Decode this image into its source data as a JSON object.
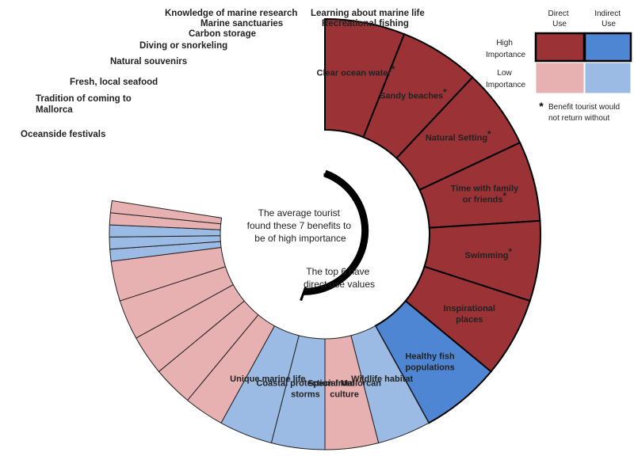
{
  "colors": {
    "direct_high": "#9b3235",
    "direct_low": "#e7b0b1",
    "indirect_high": "#4f86d3",
    "indirect_low": "#9bbbe4"
  },
  "segments": [
    {
      "label": "Clear ocean water",
      "lines": [
        "Clear ocean water"
      ],
      "category": "direct_high",
      "star": true,
      "size": "large"
    },
    {
      "label": "Sandy beaches",
      "lines": [
        "Sandy beaches"
      ],
      "category": "direct_high",
      "star": true,
      "size": "large"
    },
    {
      "label": "Natural Setting",
      "lines": [
        "Natural Setting"
      ],
      "category": "direct_high",
      "star": true,
      "size": "large"
    },
    {
      "label": "Time with family or friends",
      "lines": [
        "Time with family",
        "or friends"
      ],
      "category": "direct_high",
      "star": true,
      "size": "large"
    },
    {
      "label": "Swimming",
      "lines": [
        "Swimming"
      ],
      "category": "direct_high",
      "star": true,
      "size": "large"
    },
    {
      "label": "Inspirational places",
      "lines": [
        "Inspirational",
        "places"
      ],
      "category": "direct_high",
      "star": false,
      "size": "large"
    },
    {
      "label": "Healthy fish populations",
      "lines": [
        "Healthy fish",
        "populations"
      ],
      "category": "indirect_high",
      "star": false,
      "size": "large"
    },
    {
      "label": "Wildlife habitat",
      "lines": [
        "Wildlife habitat"
      ],
      "category": "indirect_low",
      "star": false,
      "size": "medium"
    },
    {
      "label": "Special Mallorcan culture",
      "lines": [
        "Special Mallorcan",
        "culture"
      ],
      "category": "direct_low",
      "star": false,
      "size": "medium"
    },
    {
      "label": "Coastal protection from storms",
      "lines": [
        "Coastal protection from",
        "storms"
      ],
      "category": "indirect_low",
      "star": false,
      "size": "medium"
    },
    {
      "label": "Unique marine life",
      "lines": [
        "Unique marine life"
      ],
      "category": "indirect_low",
      "star": false,
      "size": "medium"
    },
    {
      "label": "Oceanside festivals",
      "lines": [
        "Oceanside festivals"
      ],
      "category": "direct_low",
      "star": false,
      "size": "small"
    },
    {
      "label": "Tradition of coming to Mallorca",
      "lines": [
        "Tradition of coming to",
        "Mallorca"
      ],
      "category": "direct_low",
      "star": false,
      "size": "small"
    },
    {
      "label": "Fresh, local seafood",
      "lines": [
        "Fresh, local seafood"
      ],
      "category": "direct_low",
      "star": false,
      "size": "small"
    },
    {
      "label": "Natural souvenirs",
      "lines": [
        "Natural souvenirs"
      ],
      "category": "direct_low",
      "star": false,
      "size": "small"
    },
    {
      "label": "Diving or snorkeling",
      "lines": [
        "Diving or snorkeling"
      ],
      "category": "direct_low",
      "star": false,
      "size": "small"
    },
    {
      "label": "Carbon storage",
      "lines": [
        "Carbon storage"
      ],
      "category": "indirect_low",
      "star": false,
      "size": "thin"
    },
    {
      "label": "Marine sanctuaries",
      "lines": [
        "Marine sanctuaries"
      ],
      "category": "indirect_low",
      "star": false,
      "size": "thin"
    },
    {
      "label": "Knowledge of marine research",
      "lines": [
        "Knowledge of marine research"
      ],
      "category": "indirect_low",
      "star": false,
      "size": "thin"
    },
    {
      "label": "Learning about marine life",
      "lines": [
        "Learning about marine life"
      ],
      "category": "direct_low",
      "star": false,
      "size": "thin"
    },
    {
      "label": "Recreational fishing",
      "lines": [
        "Recreational fishing"
      ],
      "category": "direct_low",
      "star": false,
      "size": "thin"
    }
  ],
  "center": {
    "text1": [
      "The average tourist",
      "found these 7 benefits to",
      "be of high importance"
    ],
    "text2": [
      "The top 6 have",
      "direct use values"
    ]
  },
  "legend": {
    "col_direct": [
      "Direct",
      "Use"
    ],
    "col_indirect": [
      "Indirect",
      "Use"
    ],
    "row_high": [
      "High",
      "Importance"
    ],
    "row_low": [
      "Low",
      "Importance"
    ],
    "star_note": [
      "Benefit tourist would",
      "not return without"
    ],
    "star_symbol": "*"
  }
}
